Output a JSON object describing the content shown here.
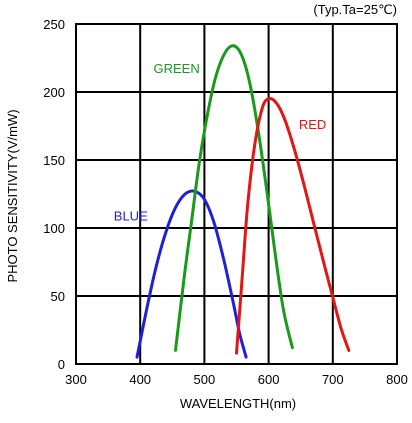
{
  "chart_data": {
    "type": "line",
    "title": "",
    "condition_note": "(Typ.Ta=25℃)",
    "xlabel": "WAVELENGTH(nm)",
    "ylabel": "PHOTO SENSITIVITY(V/mW)",
    "xlim": [
      300,
      800
    ],
    "ylim": [
      0,
      250
    ],
    "x_ticks": [
      300,
      400,
      500,
      600,
      700,
      800
    ],
    "y_ticks": [
      0,
      50,
      100,
      150,
      200,
      250
    ],
    "grid": true,
    "legend": "inline-labels",
    "series": [
      {
        "name": "BLUE",
        "color": "#1f1fd6",
        "x": [
          395,
          410,
          425,
          440,
          455,
          470,
          485,
          500,
          515,
          530,
          545,
          555,
          565
        ],
        "y": [
          5,
          40,
          72,
          97,
          115,
          125,
          127,
          121,
          104,
          77,
          45,
          22,
          5
        ]
      },
      {
        "name": "GREEN",
        "color": "#1a9a1a",
        "x": [
          455,
          468,
          480,
          492,
          505,
          517,
          530,
          544,
          557,
          570,
          583,
          597,
          610,
          623,
          637
        ],
        "y": [
          10,
          62,
          105,
          148,
          184,
          210,
          227,
          234,
          228,
          208,
          174,
          128,
          82,
          40,
          12
        ]
      },
      {
        "name": "RED",
        "color": "#e21616",
        "x": [
          550,
          558,
          567,
          578,
          590,
          600,
          612,
          625,
          640,
          655,
          670,
          685,
          700,
          713,
          725
        ],
        "y": [
          8,
          58,
          115,
          160,
          188,
          195,
          192,
          180,
          158,
          132,
          104,
          76,
          49,
          26,
          10
        ]
      }
    ]
  }
}
